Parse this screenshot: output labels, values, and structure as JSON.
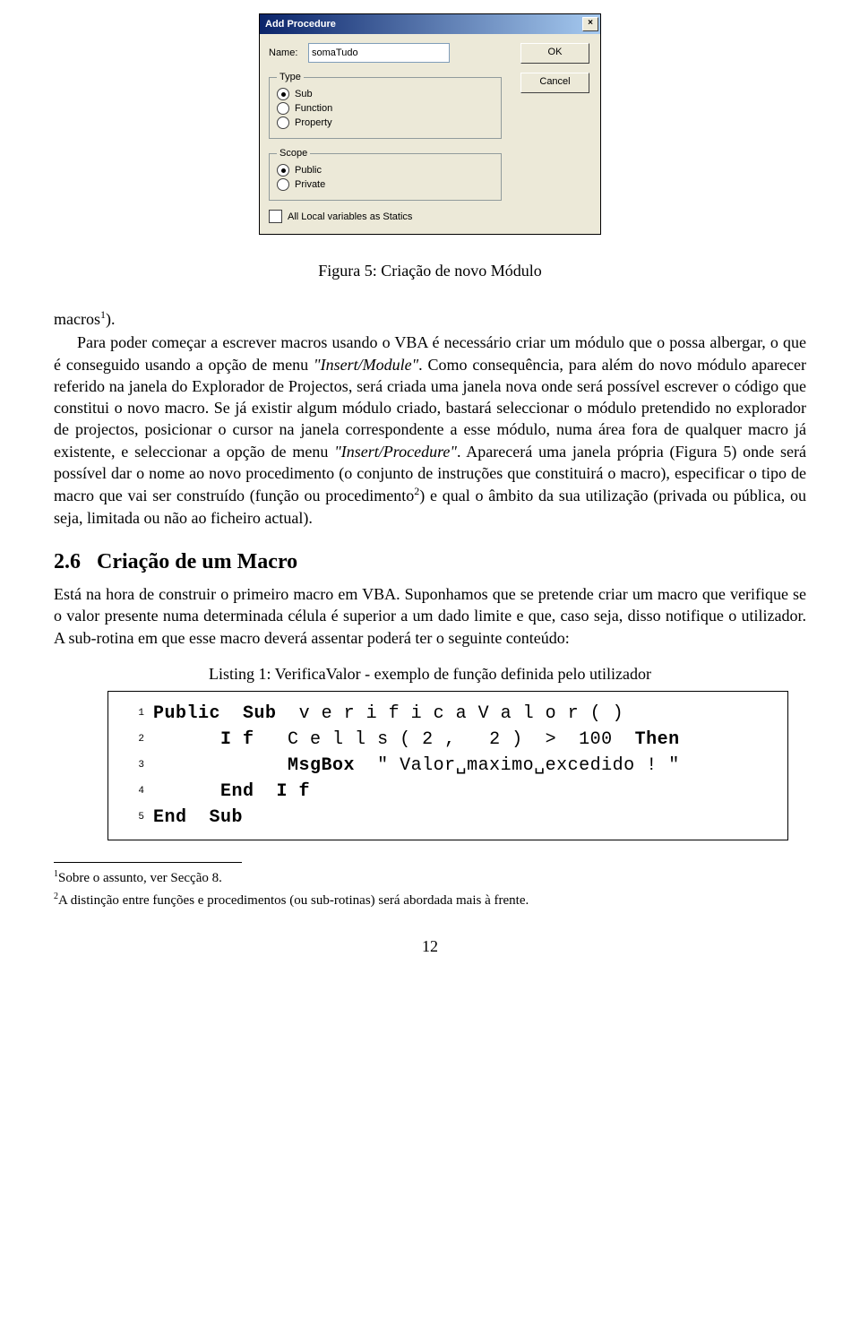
{
  "dialog": {
    "title": "Add Procedure",
    "name_label": "Name:",
    "name_value": "somaTudo",
    "ok_label": "OK",
    "cancel_label": "Cancel",
    "group_type": {
      "legend": "Type",
      "opts": [
        "Sub",
        "Function",
        "Property"
      ],
      "selected": 0
    },
    "group_scope": {
      "legend": "Scope",
      "opts": [
        "Public",
        "Private"
      ],
      "selected": 0
    },
    "statics_label": "All Local variables as Statics"
  },
  "caption": "Figura 5: Criação de novo Módulo",
  "para1_lead": "macros",
  "para1_sup": "1",
  "para1_after": ").",
  "para1_body1": "Para poder começar a escrever macros usando o VBA é necessário criar um módulo que o possa albergar, o que é conseguido usando a opção de menu ",
  "para1_em1": "\"Insert/Module\"",
  "para1_body2": ". Como consequência, para além do novo módulo aparecer referido na janela do Explorador de Projectos, será criada uma janela nova onde será possível escrever o código que constitui o novo macro. Se já existir algum módulo criado, bastará seleccionar o módulo pretendido no explorador de projectos, posicionar o cursor na janela correspondente a esse módulo, numa área fora de qualquer macro já existente, e seleccionar a opção de menu ",
  "para1_em2": "\"Insert/Procedure\"",
  "para1_body3": ". Aparecerá uma janela própria (Figura 5) onde será possível dar o nome ao novo procedimento (o conjunto de instruções que constituirá o macro), especificar o tipo de macro que vai ser construído (função ou procedimento",
  "para1_sup2": "2",
  "para1_body4": ") e qual o âmbito da sua utilização (privada ou pública, ou seja, limitada ou não ao ficheiro actual).",
  "section_number": "2.6",
  "section_title": "Criação de um Macro",
  "para2": "Está na hora de construir o primeiro macro em VBA. Suponhamos que se pretende criar um macro que verifique se o valor presente numa determinada célula é superior a um dado limite e que, caso seja, disso notifique o utilizador. A sub-rotina em que esse macro deverá assentar poderá ter o seguinte conteúdo:",
  "listing_caption": "Listing 1: VerificaValor - exemplo de função definida pelo utilizador",
  "code": {
    "lines": [
      {
        "n": "1",
        "indent": 0,
        "tokens": [
          [
            "kw",
            "Public"
          ],
          [
            "sp",
            "  "
          ],
          [
            "kw",
            "Sub"
          ],
          [
            "sp",
            "  "
          ],
          [
            "id",
            "v e r i f i c a V a l o r ( )"
          ]
        ]
      },
      {
        "n": "2",
        "indent": 1,
        "tokens": [
          [
            "kw",
            "I f"
          ],
          [
            "sp",
            "   "
          ],
          [
            "id",
            "C e l l s ( 2 ,   2 )  >  100"
          ],
          [
            "sp",
            "  "
          ],
          [
            "kw",
            "Then"
          ]
        ]
      },
      {
        "n": "3",
        "indent": 2,
        "tokens": [
          [
            "kw",
            "MsgBox"
          ],
          [
            "sp",
            "  "
          ],
          [
            "id",
            "\" Valor␣maximo␣excedido ! \""
          ]
        ]
      },
      {
        "n": "4",
        "indent": 1,
        "tokens": [
          [
            "kw",
            "End  I f"
          ]
        ]
      },
      {
        "n": "5",
        "indent": 0,
        "tokens": [
          [
            "kw",
            "End  Sub"
          ]
        ]
      }
    ]
  },
  "footnote1_sup": "1",
  "footnote1": "Sobre o assunto, ver Secção 8.",
  "footnote2_sup": "2",
  "footnote2": "A distinção entre funções e procedimentos (ou sub-rotinas) será abordada mais à frente.",
  "page_number": "12",
  "colors": {
    "titlebar_left": "#0a246a",
    "titlebar_right": "#a6caf0",
    "dialog_bg": "#ece9d8"
  }
}
